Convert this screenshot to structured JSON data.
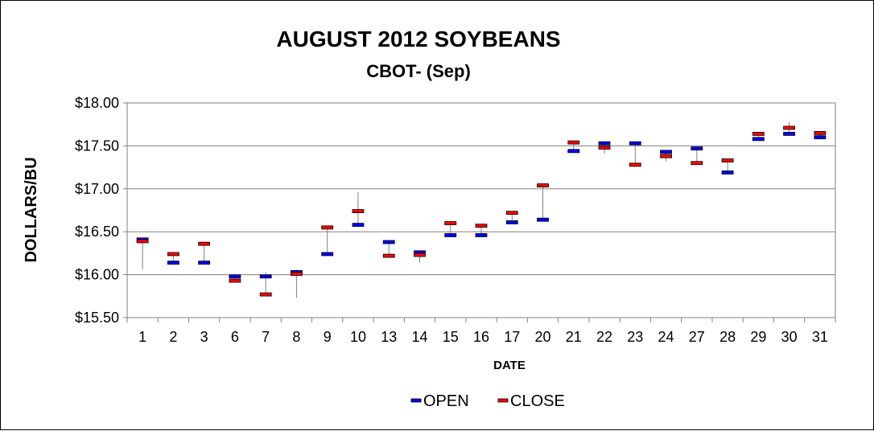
{
  "chart_data": {
    "type": "candlestick",
    "title": "AUGUST 2012 SOYBEANS",
    "subtitle": "CBOT- (Sep)",
    "xlabel": "DATE",
    "ylabel": "DOLLARS/BU",
    "ylim": [
      15.5,
      18.0
    ],
    "yticks": [
      "$15.50",
      "$16.00",
      "$16.50",
      "$17.00",
      "$17.50",
      "$18.00"
    ],
    "grid": true,
    "legend_position": "bottom",
    "categories": [
      "1",
      "2",
      "3",
      "6",
      "7",
      "8",
      "9",
      "10",
      "13",
      "14",
      "15",
      "16",
      "17",
      "20",
      "21",
      "22",
      "23",
      "24",
      "27",
      "28",
      "29",
      "30",
      "31"
    ],
    "series": [
      {
        "name": "OPEN",
        "color": "#0000ff",
        "values": [
          16.41,
          16.14,
          16.14,
          15.98,
          15.98,
          16.03,
          16.24,
          16.58,
          16.38,
          16.26,
          16.46,
          16.46,
          16.61,
          16.64,
          17.44,
          17.53,
          17.53,
          17.43,
          17.47,
          17.19,
          17.58,
          17.64,
          17.6
        ]
      },
      {
        "name": "CLOSE",
        "color": "#ff0000",
        "values": [
          16.39,
          16.24,
          16.36,
          15.93,
          15.77,
          16.01,
          16.55,
          16.74,
          16.22,
          16.23,
          16.6,
          16.57,
          16.72,
          17.04,
          17.54,
          17.48,
          17.28,
          17.38,
          17.3,
          17.33,
          17.64,
          17.71,
          17.65
        ]
      }
    ],
    "high": [
      16.43,
      16.24,
      16.38,
      16.0,
      16.03,
      16.06,
      16.56,
      16.96,
      16.39,
      16.27,
      16.61,
      16.58,
      16.73,
      17.05,
      17.55,
      17.54,
      17.54,
      17.44,
      17.48,
      17.34,
      17.66,
      17.78,
      17.66
    ],
    "low": [
      16.06,
      16.12,
      16.12,
      15.91,
      15.75,
      15.73,
      16.22,
      16.56,
      16.21,
      16.14,
      16.44,
      16.44,
      16.59,
      16.62,
      17.42,
      17.41,
      17.26,
      17.32,
      17.28,
      17.17,
      17.56,
      17.62,
      17.58
    ],
    "legend": [
      {
        "label": "OPEN",
        "color": "#0000ff"
      },
      {
        "label": "CLOSE",
        "color": "#ff0000"
      }
    ]
  }
}
